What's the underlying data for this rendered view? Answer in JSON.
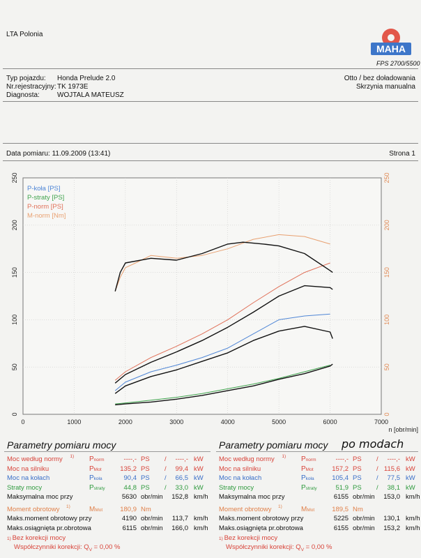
{
  "header": {
    "company": "LTA Polonia",
    "logo_text": "MAHA",
    "model": "FPS 2700/5500",
    "vehicle_type_label": "Typ pojazdu:",
    "vehicle_type": "Honda Prelude 2.0",
    "reg_label": "Nr.rejestracyjny:",
    "reg": "TK 1973E",
    "diag_label": "Diagnosta:",
    "diag": "WOJTALA MATEUSZ",
    "engine": "Otto / bez doładowania",
    "gearbox": "Skrzynia manualna",
    "date": "Data pomiaru: 11.09.2009 (13:41)",
    "page": "Strona 1"
  },
  "chart_data": {
    "type": "line",
    "xlabel": "n [obr/min]",
    "xlim": [
      0,
      7000
    ],
    "ylim": [
      0,
      250
    ],
    "x_ticks": [
      "0",
      "1000",
      "2000",
      "3000",
      "4000",
      "5000",
      "6000",
      "7000"
    ],
    "y_ticks": [
      "0",
      "50",
      "100",
      "150",
      "200",
      "250"
    ],
    "legend": [
      "P-koła [PS]",
      "P-straty [PS]",
      "P-norm [PS]",
      "M-norm [Nm]"
    ],
    "colors": {
      "p_kola": "#4f86d6",
      "p_straty": "#3fa34d",
      "p_norm": "#e07058",
      "m_norm": "#e8a070",
      "black": "#111111"
    },
    "series": [
      {
        "name": "P-koła [PS]",
        "color": "#4f86d6",
        "x": [
          1800,
          2000,
          2500,
          3000,
          3500,
          4000,
          4500,
          5000,
          5500,
          6000
        ],
        "y": [
          25,
          34,
          45,
          52,
          60,
          70,
          85,
          100,
          104,
          106
        ]
      },
      {
        "name": "P-straty [PS]",
        "color": "#3fa34d",
        "x": [
          1800,
          2000,
          2500,
          3000,
          3500,
          4000,
          4500,
          5000,
          5500,
          6000
        ],
        "y": [
          11,
          12,
          15,
          18,
          22,
          27,
          32,
          38,
          45,
          52
        ]
      },
      {
        "name": "P-norm [PS]",
        "color": "#e07058",
        "x": [
          1800,
          2000,
          2500,
          3000,
          3500,
          4000,
          4500,
          5000,
          5500,
          6000
        ],
        "y": [
          36,
          45,
          60,
          72,
          85,
          100,
          118,
          135,
          150,
          160
        ]
      },
      {
        "name": "M-norm [Nm]",
        "color": "#e8a070",
        "x": [
          1800,
          1900,
          2000,
          2200,
          2500,
          3000,
          3500,
          4000,
          4500,
          5000,
          5500,
          6000
        ],
        "y": [
          130,
          145,
          155,
          160,
          168,
          165,
          168,
          175,
          185,
          190,
          188,
          180
        ]
      },
      {
        "name": "",
        "color": "#111111",
        "x": [
          1800,
          2000,
          2500,
          3000,
          3500,
          4000,
          4500,
          5000,
          5500,
          6000,
          6050
        ],
        "y": [
          22,
          30,
          40,
          47,
          56,
          65,
          78,
          88,
          93,
          87,
          80
        ]
      },
      {
        "name": "",
        "color": "#111111",
        "x": [
          1800,
          2000,
          2500,
          3000,
          3500,
          4000,
          4500,
          5000,
          5500,
          6000,
          6050
        ],
        "y": [
          10,
          11,
          13,
          16,
          20,
          25,
          30,
          37,
          43,
          51,
          53
        ]
      },
      {
        "name": "",
        "color": "#111111",
        "x": [
          1800,
          2000,
          2500,
          3000,
          3500,
          4000,
          4500,
          5000,
          5500,
          6000,
          6050
        ],
        "y": [
          33,
          42,
          55,
          66,
          78,
          92,
          108,
          125,
          136,
          134,
          132
        ]
      },
      {
        "name": "",
        "color": "#111111",
        "x": [
          1800,
          1900,
          2000,
          2500,
          3000,
          3500,
          4000,
          4300,
          4700,
          5000,
          5500,
          6000,
          6050
        ],
        "y": [
          130,
          150,
          160,
          165,
          163,
          170,
          180,
          182,
          180,
          178,
          170,
          152,
          150
        ]
      }
    ]
  },
  "params_left": {
    "title": "Parametry pomiaru mocy",
    "rows": [
      {
        "label": "Moc według normy",
        "sup": "1)",
        "sym": "P",
        "sub": "norm",
        "v1": "----,-",
        "u1": "PS",
        "v2": "----,-",
        "u2": "kW",
        "cls": "red"
      },
      {
        "label": "Moc na silniku",
        "sym": "P",
        "sub": "Mot",
        "v1": "135,2",
        "u1": "PS",
        "v2": "99,4",
        "u2": "kW",
        "cls": "red"
      },
      {
        "label": "Moc na kołach",
        "sym": "P",
        "sub": "koła",
        "v1": "90,4",
        "u1": "PS",
        "v2": "66,5",
        "u2": "kW",
        "cls": "blue"
      },
      {
        "label": "Straty mocy",
        "sym": "P",
        "sub": "straty",
        "v1": "44,8",
        "u1": "PS",
        "v2": "33,0",
        "u2": "kW",
        "cls": "green"
      },
      {
        "label": "Maksymalna moc przy",
        "v1": "5630",
        "u1": "obr/min",
        "v2": "152,8",
        "u2": "km/h",
        "cls": "blk"
      },
      {
        "label": "Moment obrotowy",
        "sup": "1)",
        "sym": "M",
        "sub": "Mot",
        "v1": "180,9",
        "u1": "Nm",
        "v2": "",
        "u2": "",
        "cls": "orange"
      },
      {
        "label": "Maks.moment obrotowy przy",
        "v1": "4190",
        "u1": "obr/min",
        "v2": "113,7",
        "u2": "km/h",
        "cls": "blk"
      },
      {
        "label": "Maks.osiągnięta pr.obrotowa",
        "v1": "6115",
        "u1": "obr/min",
        "v2": "166,0",
        "u2": "km/h",
        "cls": "blk"
      }
    ],
    "foot1": "Bez korekcji mocy",
    "foot2": "Współczynniki korekcji: Q",
    "foot2_sub": "V",
    "foot2_val": "= 0,00 %"
  },
  "params_right": {
    "title": "Parametry pomiaru mocy",
    "handwritten": "po modach",
    "rows": [
      {
        "label": "Moc według normy",
        "sup": "1)",
        "sym": "P",
        "sub": "norm",
        "v1": "----,-",
        "u1": "PS",
        "v2": "----,-",
        "u2": "kW",
        "cls": "red"
      },
      {
        "label": "Moc na silniku",
        "sym": "P",
        "sub": "Mot",
        "v1": "157,2",
        "u1": "PS",
        "v2": "115,6",
        "u2": "kW",
        "cls": "red"
      },
      {
        "label": "Moc na kołach",
        "sym": "P",
        "sub": "koła",
        "v1": "105,4",
        "u1": "PS",
        "v2": "77,5",
        "u2": "kW",
        "cls": "blue"
      },
      {
        "label": "Straty mocy",
        "sym": "P",
        "sub": "straty",
        "v1": "51,9",
        "u1": "PS",
        "v2": "38,1",
        "u2": "kW",
        "cls": "green"
      },
      {
        "label": "Maksymalna moc przy",
        "v1": "6155",
        "u1": "obr/min",
        "v2": "153,0",
        "u2": "km/h",
        "cls": "blk"
      },
      {
        "label": "Moment obrotowy",
        "sup": "1)",
        "sym": "M",
        "sub": "Mot",
        "v1": "189,5",
        "u1": "Nm",
        "v2": "",
        "u2": "",
        "cls": "orange"
      },
      {
        "label": "Maks.moment obrotowy przy",
        "v1": "5225",
        "u1": "obr/min",
        "v2": "130,1",
        "u2": "km/h",
        "cls": "blk"
      },
      {
        "label": "Maks.osiągnięta pr.obrotowa",
        "v1": "6155",
        "u1": "obr/min",
        "v2": "153,2",
        "u2": "km/h",
        "cls": "blk"
      }
    ],
    "foot1": "Bez korekcji mocy",
    "foot2": "Współczynniki korekcji: Q",
    "foot2_sub": "V",
    "foot2_val": "= 0,00 %"
  }
}
